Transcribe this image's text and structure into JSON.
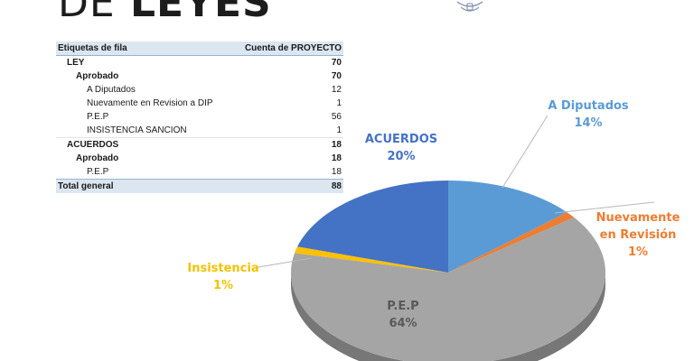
{
  "header": {
    "title_light": "DE",
    "title_bold": "LEYES"
  },
  "pivot_table": {
    "col_label": "Etiquetas de fila",
    "col_value": "Cuenta de PROYECTO",
    "rows": [
      {
        "label": "LEY",
        "value": "70",
        "level": 1,
        "bold": true
      },
      {
        "label": "Aprobado",
        "value": "70",
        "level": 2,
        "bold": true
      },
      {
        "label": "A Diputados",
        "value": "12",
        "level": 3,
        "bold": false
      },
      {
        "label": "Nuevamente en Revision a DIP",
        "value": "1",
        "level": 3,
        "bold": false
      },
      {
        "label": "P.E.P",
        "value": "56",
        "level": 3,
        "bold": false
      },
      {
        "label": "INSISTENCIA SANCION",
        "value": "1",
        "level": 3,
        "bold": false
      },
      {
        "label": "ACUERDOS",
        "value": "18",
        "level": 1,
        "bold": true
      },
      {
        "label": "Aprobado",
        "value": "18",
        "level": 2,
        "bold": true
      },
      {
        "label": "P.E.P",
        "value": "18",
        "level": 3,
        "bold": false
      }
    ],
    "total_label": "Total general",
    "total_value": "88"
  },
  "chart_data": {
    "type": "pie",
    "slices": [
      {
        "name": "A Diputados",
        "value": 12,
        "percent_label": "14%",
        "color": "#5b9bd5"
      },
      {
        "name": "Nuevamente en Revisión",
        "value": 1,
        "percent_label": "1%",
        "color": "#ed7d31"
      },
      {
        "name": "P.E.P",
        "value": 56,
        "percent_label": "64%",
        "color": "#a5a5a5"
      },
      {
        "name": "Insistencia",
        "value": 1,
        "percent_label": "1%",
        "color": "#ffc000"
      },
      {
        "name": "ACUERDOS",
        "value": 18,
        "percent_label": "20%",
        "color": "#4472c4"
      }
    ],
    "labels": [
      {
        "name_lines": [
          "A Diputados"
        ],
        "percent": "14%",
        "color": "#5b9bd5"
      },
      {
        "name_lines": [
          "Nuevamente",
          "en Revisión"
        ],
        "percent": "1%",
        "color": "#ed7d31"
      },
      {
        "name_lines": [
          "P.E.P"
        ],
        "percent": "64%",
        "color": "#595959"
      },
      {
        "name_lines": [
          "Insistencia"
        ],
        "percent": "1%",
        "color": "#f2c200"
      },
      {
        "name_lines": [
          "ACUERDOS"
        ],
        "percent": "20%",
        "color": "#4472c4"
      }
    ]
  }
}
